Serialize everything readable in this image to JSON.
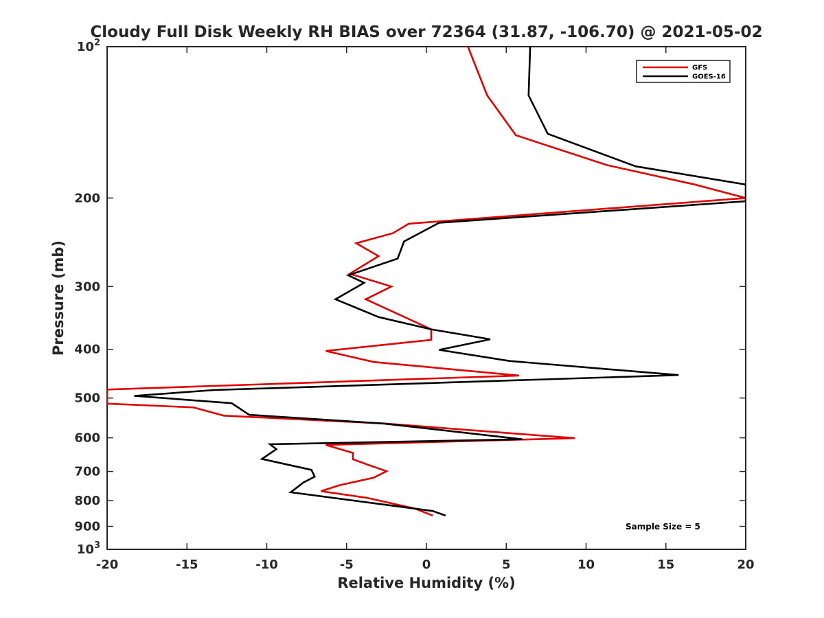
{
  "chart_data": {
    "type": "line",
    "title": "Cloudy Full Disk Weekly RH BIAS over 72364 (31.87, -106.70) @ 2021-05-02",
    "xlabel": "Relative Humidity (%)",
    "ylabel": "Pressure (mb)",
    "xlim": [
      -20,
      20
    ],
    "ylim": [
      100,
      1000
    ],
    "y_scale": "log",
    "y_reversed": true,
    "xticks": [
      -20,
      -15,
      -10,
      -5,
      0,
      5,
      10,
      15,
      20
    ],
    "xtick_labels": [
      "-20",
      "-15",
      "-10",
      "-5",
      "0",
      "5",
      "10",
      "15",
      "20"
    ],
    "yticks": [
      100,
      200,
      300,
      400,
      500,
      600,
      700,
      800,
      900,
      1000
    ],
    "ytick_labels": [
      "10^2",
      "200",
      "300",
      "400",
      "500",
      "600",
      "700",
      "800",
      "900",
      "10^3"
    ],
    "grid": false,
    "legend_position": "top-right",
    "annotation": "Sample Size = 5",
    "series": [
      {
        "name": "GFS",
        "color": "#e00000",
        "points": [
          [
            2.6,
            100
          ],
          [
            3.8,
            125
          ],
          [
            5.6,
            150
          ],
          [
            11.3,
            172
          ],
          [
            16.8,
            188
          ],
          [
            20.0,
            200
          ],
          [
            -1.1,
            225
          ],
          [
            -2.1,
            235
          ],
          [
            -4.4,
            246
          ],
          [
            -3.0,
            261
          ],
          [
            -4.8,
            283
          ],
          [
            -2.2,
            300
          ],
          [
            -3.8,
            318
          ],
          [
            0.3,
            365
          ],
          [
            0.3,
            383
          ],
          [
            -6.3,
            403
          ],
          [
            -3.3,
            424
          ],
          [
            5.8,
            451
          ],
          [
            -20.0,
            481
          ],
          [
            -20.0,
            513
          ],
          [
            -14.6,
            522
          ],
          [
            -12.7,
            542
          ],
          [
            -2.6,
            562
          ],
          [
            9.3,
            601
          ],
          [
            -6.3,
            620
          ],
          [
            -4.6,
            643
          ],
          [
            -4.6,
            662
          ],
          [
            -3.6,
            680
          ],
          [
            -2.5,
            699
          ],
          [
            -3.3,
            720
          ],
          [
            -5.4,
            745
          ],
          [
            -6.6,
            766
          ],
          [
            -3.7,
            790
          ],
          [
            -0.7,
            830
          ],
          [
            0.4,
            857
          ]
        ]
      },
      {
        "name": "GOES-16",
        "color": "#000000",
        "points": [
          [
            6.5,
            100
          ],
          [
            6.4,
            125
          ],
          [
            7.6,
            149
          ],
          [
            13.1,
            173
          ],
          [
            20.0,
            188
          ],
          [
            20.0,
            203
          ],
          [
            0.8,
            224
          ],
          [
            -1.4,
            244
          ],
          [
            -1.8,
            264
          ],
          [
            -4.9,
            285
          ],
          [
            -3.9,
            295
          ],
          [
            -5.7,
            318
          ],
          [
            -3.0,
            345
          ],
          [
            0.3,
            365
          ],
          [
            4.0,
            382
          ],
          [
            0.8,
            401
          ],
          [
            5.2,
            422
          ],
          [
            15.8,
            450
          ],
          [
            -13.3,
            482
          ],
          [
            -18.3,
            495
          ],
          [
            -12.2,
            512
          ],
          [
            -11.1,
            540
          ],
          [
            -2.7,
            562
          ],
          [
            6.0,
            604
          ],
          [
            -9.8,
            618
          ],
          [
            -9.4,
            632
          ],
          [
            -10.3,
            661
          ],
          [
            -7.2,
            695
          ],
          [
            -7.0,
            717
          ],
          [
            -7.7,
            736
          ],
          [
            -8.5,
            770
          ],
          [
            0.4,
            839
          ],
          [
            1.2,
            857
          ]
        ]
      }
    ]
  }
}
